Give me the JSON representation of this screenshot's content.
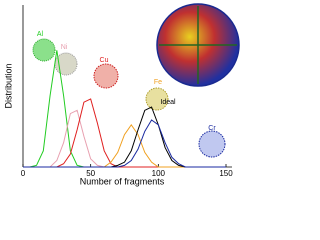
{
  "chart_data": {
    "type": "line",
    "xlabel": "Number of fragments",
    "ylabel": "Distribution",
    "x": [
      0,
      5,
      10,
      15,
      20,
      25,
      30,
      35,
      40,
      45,
      50,
      55,
      60,
      65,
      70,
      75,
      80,
      85,
      90,
      95,
      100,
      105,
      110,
      115,
      120,
      125,
      130,
      135,
      140,
      145,
      150
    ],
    "xlim": [
      0,
      150
    ],
    "xticks": [
      0,
      50,
      100,
      150
    ],
    "ylim": [
      0,
      1
    ],
    "series": [
      {
        "name": "Al",
        "color": "#22cc22",
        "values": [
          0,
          0,
          0.01,
          0.1,
          0.44,
          0.72,
          0.44,
          0.1,
          0.01,
          0,
          0,
          0,
          0,
          0,
          0,
          0,
          0,
          0,
          0,
          0,
          0,
          0,
          0,
          0,
          0,
          0,
          0,
          0,
          0,
          0,
          0
        ]
      },
      {
        "name": "Ni",
        "color": "#e8a0b0",
        "values": [
          0,
          0,
          0,
          0,
          0,
          0.04,
          0.15,
          0.33,
          0.35,
          0.19,
          0.05,
          0.01,
          0,
          0,
          0,
          0,
          0,
          0,
          0,
          0,
          0,
          0,
          0,
          0,
          0,
          0,
          0,
          0,
          0,
          0,
          0
        ]
      },
      {
        "name": "Cu",
        "color": "#e02020",
        "values": [
          0,
          0,
          0,
          0,
          0,
          0,
          0.02,
          0.08,
          0.23,
          0.4,
          0.42,
          0.27,
          0.1,
          0.02,
          0,
          0,
          0,
          0,
          0,
          0,
          0,
          0,
          0,
          0,
          0,
          0,
          0,
          0,
          0,
          0,
          0
        ]
      },
      {
        "name": "Fe",
        "color": "#f0a020",
        "values": [
          0,
          0,
          0,
          0,
          0,
          0,
          0,
          0,
          0,
          0,
          0,
          0,
          0,
          0.03,
          0.09,
          0.2,
          0.26,
          0.2,
          0.09,
          0.03,
          0,
          0,
          0,
          0,
          0,
          0,
          0,
          0,
          0,
          0,
          0
        ]
      },
      {
        "name": "Ideal",
        "color": "#000000",
        "values": [
          0,
          0,
          0,
          0,
          0,
          0,
          0,
          0,
          0,
          0,
          0,
          0,
          0,
          0,
          0.01,
          0.03,
          0.1,
          0.23,
          0.35,
          0.37,
          0.26,
          0.12,
          0.04,
          0.01,
          0,
          0,
          0,
          0,
          0,
          0,
          0
        ]
      },
      {
        "name": "Cr",
        "color": "#1a2aa0",
        "values": [
          0,
          0,
          0,
          0,
          0,
          0,
          0,
          0,
          0,
          0,
          0,
          0,
          0,
          0,
          0,
          0.01,
          0.04,
          0.11,
          0.22,
          0.29,
          0.26,
          0.15,
          0.06,
          0.02,
          0,
          0,
          0,
          0,
          0,
          0,
          0
        ]
      }
    ]
  }
}
